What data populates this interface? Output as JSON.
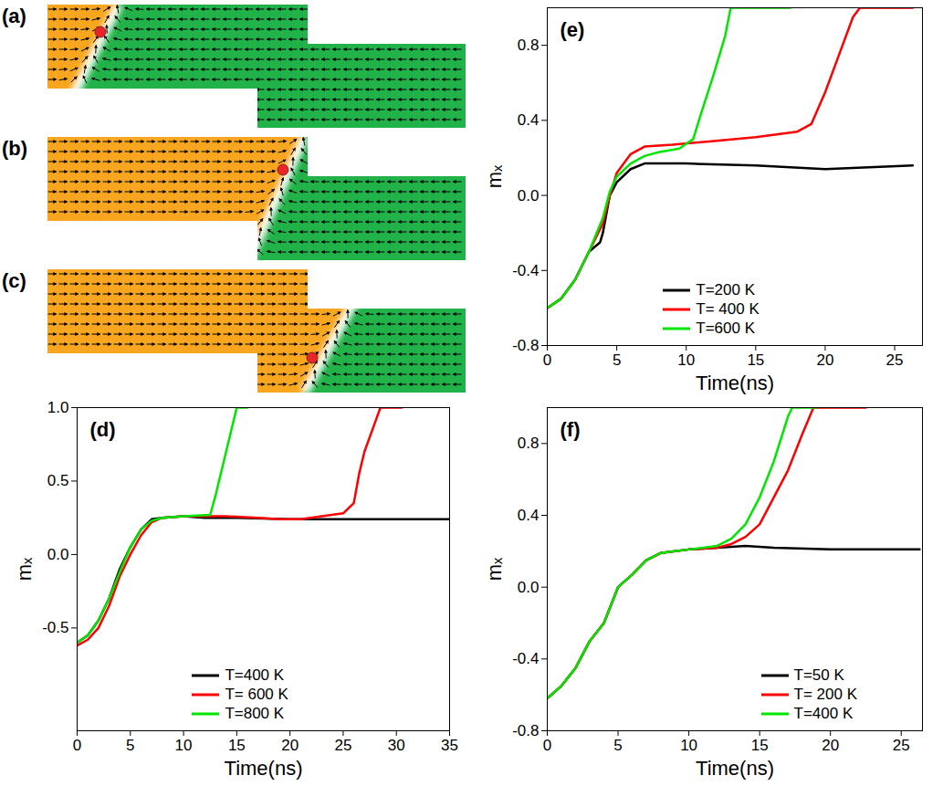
{
  "diagram": {
    "panels": [
      "(a)",
      "(b)",
      "(c)"
    ]
  },
  "chart_data": [
    {
      "type": "line",
      "title": "(d)",
      "x_label": "Time(ns)",
      "y_label": "mₓ",
      "xlim": [
        0,
        35
      ],
      "xticks": [
        0,
        5,
        10,
        15,
        20,
        25,
        30,
        35
      ],
      "ylim": [
        -1.2,
        1.0
      ],
      "yticks": [
        -0.5,
        {
          "value": 0,
          "label": "0.0"
        },
        0.5,
        {
          "value": 1,
          "label": "1.0"
        }
      ],
      "legend": "lower center",
      "series": [
        {
          "name": "T=400 K",
          "color": "#000000",
          "x": [
            0,
            1,
            2,
            3,
            4,
            5,
            6,
            7,
            8,
            10,
            12,
            15,
            20,
            25,
            30,
            35
          ],
          "values": [
            -0.6,
            -0.55,
            -0.45,
            -0.3,
            -0.1,
            0.05,
            0.17,
            0.24,
            0.25,
            0.26,
            0.25,
            0.25,
            0.24,
            0.24,
            0.24,
            0.24
          ]
        },
        {
          "name": "T= 600 K",
          "color": "#ff0000",
          "x": [
            0,
            1,
            2,
            3,
            4,
            5,
            6,
            7,
            8,
            10,
            14,
            17,
            19,
            21,
            23,
            25,
            26,
            26.5,
            27,
            28,
            28.5,
            30.5
          ],
          "values": [
            -0.62,
            -0.58,
            -0.5,
            -0.35,
            -0.15,
            0.0,
            0.13,
            0.22,
            0.25,
            0.26,
            0.26,
            0.25,
            0.24,
            0.24,
            0.26,
            0.28,
            0.35,
            0.55,
            0.7,
            0.9,
            1.0,
            1.0
          ]
        },
        {
          "name": "T=800 K",
          "color": "#00e600",
          "x": [
            0,
            1,
            2,
            3,
            4,
            5,
            6,
            7,
            8,
            10,
            12.5,
            13,
            13.5,
            14,
            14.5,
            15,
            16
          ],
          "values": [
            -0.6,
            -0.55,
            -0.45,
            -0.3,
            -0.12,
            0.05,
            0.17,
            0.23,
            0.25,
            0.26,
            0.27,
            0.4,
            0.55,
            0.7,
            0.85,
            1.0,
            1.0
          ]
        }
      ]
    },
    {
      "type": "line",
      "title": "(e)",
      "x_label": "Time(ns)",
      "y_label": "mₓ",
      "xlim": [
        0,
        27
      ],
      "xticks": [
        0,
        5,
        10,
        15,
        20,
        25
      ],
      "ylim": [
        -0.8,
        1.0
      ],
      "yticks": [
        -0.8,
        -0.4,
        {
          "value": 0,
          "label": "0.0"
        },
        0.4,
        0.8
      ],
      "legend": "lower center",
      "series": [
        {
          "name": "T=200 K",
          "color": "#000000",
          "x": [
            0,
            1,
            2,
            3,
            3.8,
            4,
            4.5,
            5,
            6,
            7,
            10,
            15,
            20,
            26.3
          ],
          "values": [
            -0.6,
            -0.55,
            -0.45,
            -0.3,
            -0.25,
            -0.2,
            0.0,
            0.07,
            0.14,
            0.17,
            0.17,
            0.16,
            0.14,
            0.16
          ]
        },
        {
          "name": "T= 400 K",
          "color": "#ff0000",
          "x": [
            0,
            1,
            2,
            3,
            4,
            4.5,
            5,
            6,
            7,
            9,
            12,
            15,
            18,
            19,
            20,
            21,
            22,
            22.5,
            26.3
          ],
          "values": [
            -0.6,
            -0.55,
            -0.45,
            -0.3,
            -0.15,
            0.0,
            0.12,
            0.22,
            0.26,
            0.27,
            0.29,
            0.31,
            0.34,
            0.38,
            0.55,
            0.75,
            0.95,
            1.0,
            1.0
          ]
        },
        {
          "name": "T=600 K",
          "color": "#00e600",
          "x": [
            0,
            1,
            2,
            3,
            4,
            4.5,
            5,
            6,
            7,
            8,
            9.5,
            10.5,
            11,
            12,
            12.8,
            13.2,
            17.5
          ],
          "values": [
            -0.6,
            -0.55,
            -0.45,
            -0.3,
            -0.12,
            0.02,
            0.1,
            0.17,
            0.21,
            0.23,
            0.25,
            0.3,
            0.42,
            0.65,
            0.85,
            1.0,
            1.0
          ]
        }
      ]
    },
    {
      "type": "line",
      "title": "(f)",
      "x_label": "Time(ns)",
      "y_label": "mₓ",
      "xlim": [
        0,
        26.5
      ],
      "xticks": [
        0,
        5,
        10,
        15,
        20,
        25
      ],
      "ylim": [
        -0.8,
        1.0
      ],
      "yticks": [
        -0.8,
        -0.4,
        {
          "value": 0,
          "label": "0.0"
        },
        0.4,
        0.8
      ],
      "legend": "lower right",
      "series": [
        {
          "name": "T=50 K",
          "color": "#000000",
          "x": [
            0,
            1,
            2,
            3,
            4,
            5,
            6,
            7,
            8,
            10,
            12,
            14,
            16,
            20,
            26.3
          ],
          "values": [
            -0.62,
            -0.55,
            -0.45,
            -0.3,
            -0.2,
            0.0,
            0.07,
            0.15,
            0.19,
            0.21,
            0.22,
            0.23,
            0.22,
            0.21,
            0.21
          ]
        },
        {
          "name": "T= 200 K",
          "color": "#ff0000",
          "x": [
            0,
            1,
            2,
            3,
            4,
            5,
            6,
            7,
            8,
            10,
            12,
            13,
            14,
            15,
            16,
            17,
            18,
            18.8,
            22.5
          ],
          "values": [
            -0.62,
            -0.55,
            -0.45,
            -0.3,
            -0.2,
            0.0,
            0.07,
            0.15,
            0.19,
            0.21,
            0.22,
            0.24,
            0.28,
            0.35,
            0.5,
            0.65,
            0.85,
            1.0,
            1.0
          ]
        },
        {
          "name": "T=400 K",
          "color": "#00e600",
          "x": [
            0,
            1,
            2,
            3,
            4,
            5,
            6,
            7,
            8,
            10,
            12,
            13,
            14,
            15,
            16,
            17,
            17.3,
            19
          ],
          "values": [
            -0.62,
            -0.55,
            -0.45,
            -0.3,
            -0.2,
            0.0,
            0.07,
            0.15,
            0.19,
            0.21,
            0.23,
            0.27,
            0.35,
            0.5,
            0.7,
            0.95,
            1.0,
            1.0
          ]
        }
      ]
    }
  ]
}
